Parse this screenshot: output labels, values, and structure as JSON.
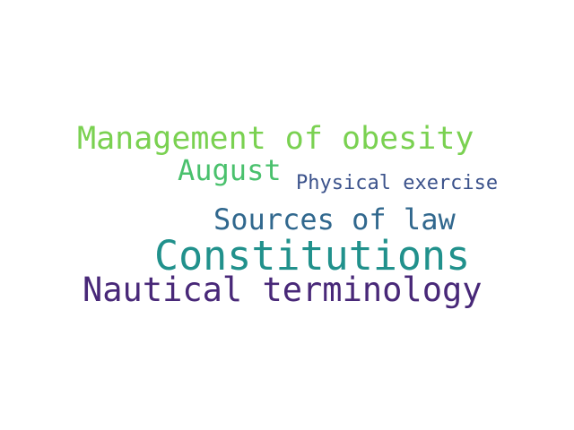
{
  "words": [
    {
      "text": "Management of obesity",
      "color": "#7ad151"
    },
    {
      "text": "August",
      "color": "#4ac16d"
    },
    {
      "text": "Physical exercise",
      "color": "#3b528b"
    },
    {
      "text": "Sources of law",
      "color": "#31688e"
    },
    {
      "text": "Constitutions",
      "color": "#21918c"
    },
    {
      "text": "Nautical terminology",
      "color": "#482878"
    }
  ]
}
